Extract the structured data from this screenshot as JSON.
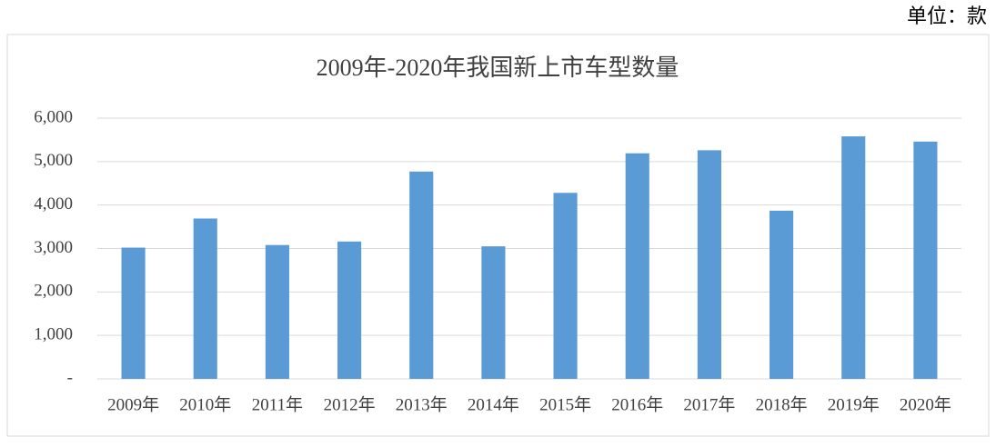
{
  "chart_data": {
    "type": "bar",
    "title": "2009年-2020年我国新上市车型数量",
    "unit": "单位：款",
    "categories": [
      "2009年",
      "2010年",
      "2011年",
      "2012年",
      "2013年",
      "2014年",
      "2015年",
      "2016年",
      "2017年",
      "2018年",
      "2019年",
      "2020年"
    ],
    "values": [
      3020,
      3690,
      3080,
      3160,
      4770,
      3050,
      4280,
      5190,
      5260,
      3870,
      5580,
      5460
    ],
    "color": "#5b9bd5",
    "ylim": [
      0,
      6000
    ],
    "yticks": [
      {
        "value": 0,
        "label": "-"
      },
      {
        "value": 1000,
        "label": "1,000"
      },
      {
        "value": 2000,
        "label": "2,000"
      },
      {
        "value": 3000,
        "label": "3,000"
      },
      {
        "value": 4000,
        "label": "4,000"
      },
      {
        "value": 5000,
        "label": "5,000"
      },
      {
        "value": 6000,
        "label": "6,000"
      }
    ],
    "grid": true
  }
}
